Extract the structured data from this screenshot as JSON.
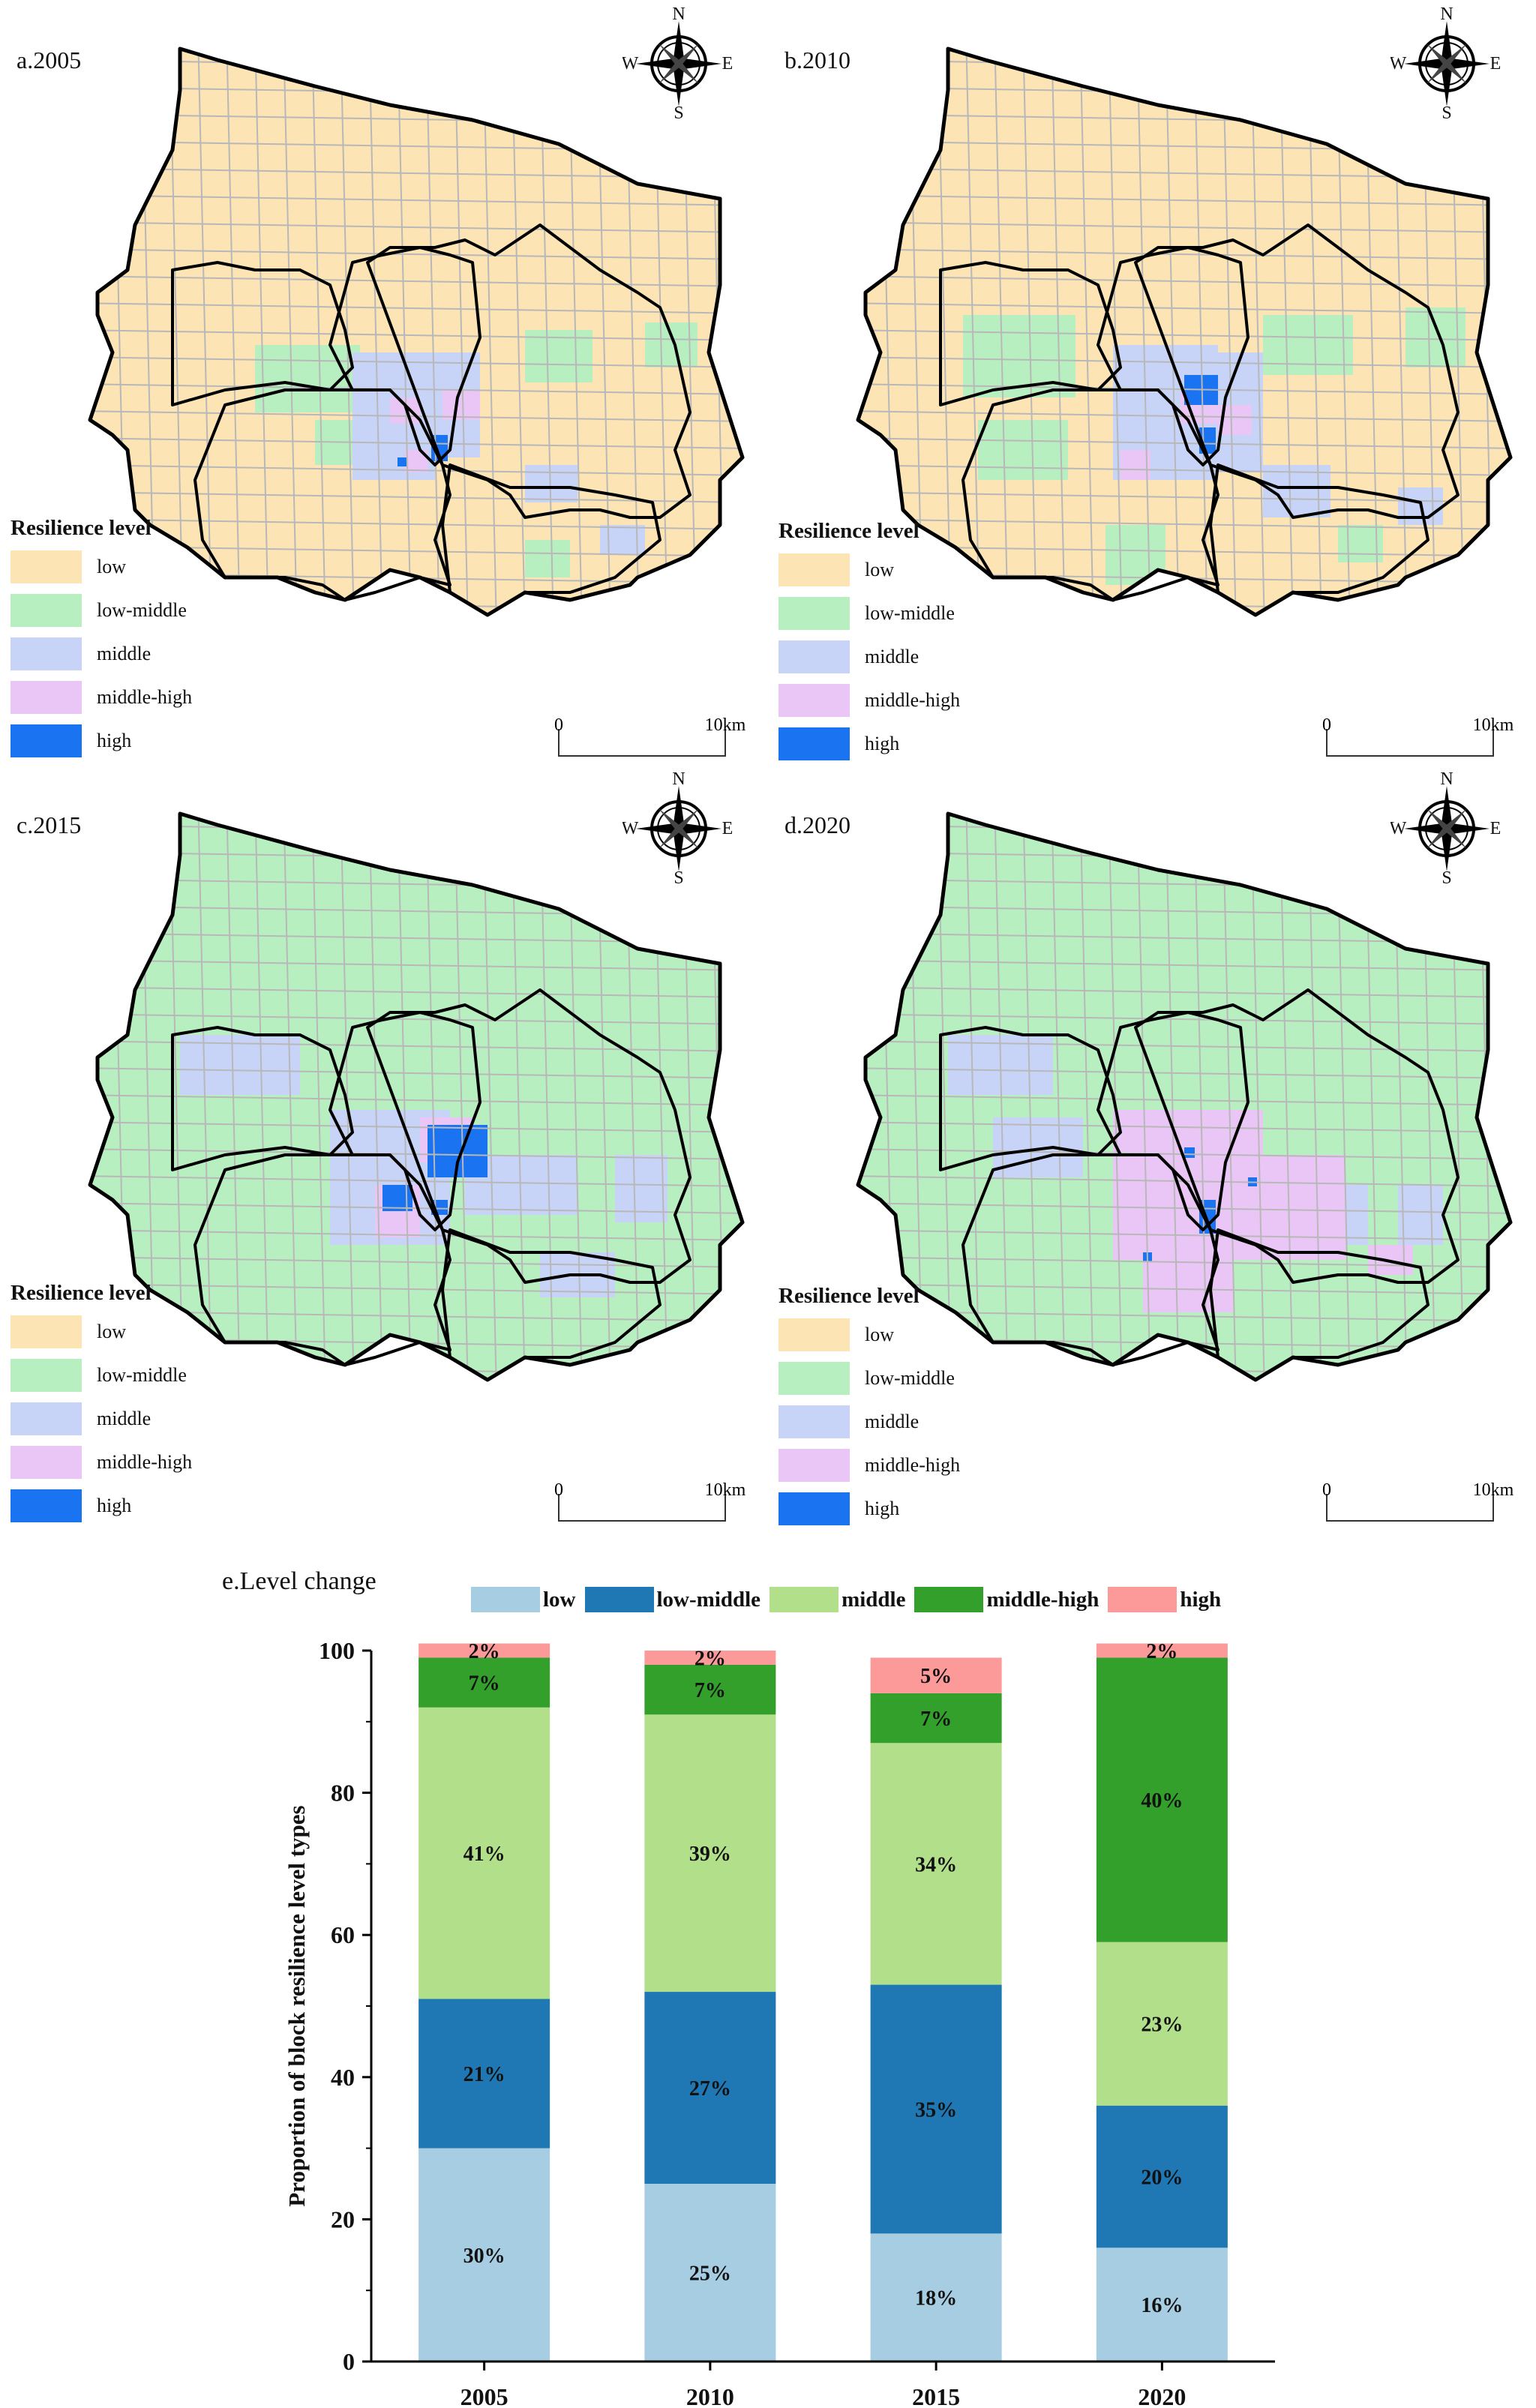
{
  "colors": {
    "low": "#fce4b5",
    "low_middle": "#b8efc0",
    "middle": "#c7d4f7",
    "middle_high": "#e9c6f5",
    "high": "#1a73f0",
    "road": "#b8b8b8",
    "boundary": "#000000"
  },
  "compass": {
    "n": "N",
    "s": "S",
    "e": "E",
    "w": "W"
  },
  "legend": {
    "title": "Resilience level",
    "items": [
      {
        "label": "low",
        "color": "#fce4b5"
      },
      {
        "label": "low-middle",
        "color": "#b8efc0"
      },
      {
        "label": "middle",
        "color": "#c7d4f7"
      },
      {
        "label": "middle-high",
        "color": "#e9c6f5"
      },
      {
        "label": "high",
        "color": "#1a73f0"
      }
    ]
  },
  "scale": {
    "start": "0",
    "end": "10km"
  },
  "maps": [
    {
      "title": "a.2005",
      "dominant": "low"
    },
    {
      "title": "b.2010",
      "dominant": "low"
    },
    {
      "title": "c.2015",
      "dominant": "low_middle"
    },
    {
      "title": "d.2020",
      "dominant": "low_middle"
    }
  ],
  "chart_data": {
    "type": "bar",
    "stacked": true,
    "title": "e.Level change",
    "ylabel": "Proportion of block resilience level types",
    "xlabel": "",
    "ylim": [
      0,
      100
    ],
    "yticks": [
      0,
      20,
      40,
      60,
      80,
      100
    ],
    "categories": [
      "2005",
      "2010",
      "2015",
      "2020"
    ],
    "series": [
      {
        "name": "low",
        "color": "#a6cde2",
        "values": [
          30,
          25,
          18,
          16
        ],
        "labels": [
          "30%",
          "25%",
          "18%",
          "16%"
        ]
      },
      {
        "name": "low-middle",
        "color": "#1f78b4",
        "values": [
          21,
          27,
          35,
          20
        ],
        "labels": [
          "21%",
          "27%",
          "35%",
          "20%"
        ]
      },
      {
        "name": "middle",
        "color": "#b2df8a",
        "values": [
          41,
          39,
          34,
          23
        ],
        "labels": [
          "41%",
          "39%",
          "34%",
          "23%"
        ]
      },
      {
        "name": "middle-high",
        "color": "#33a02c",
        "values": [
          7,
          7,
          7,
          40
        ],
        "labels": [
          "7%",
          "7%",
          "7%",
          "40%"
        ]
      },
      {
        "name": "high",
        "color": "#fb9a99",
        "values": [
          2,
          2,
          5,
          2
        ],
        "labels": [
          "2%",
          "2%",
          "5%",
          "2%"
        ]
      }
    ]
  }
}
